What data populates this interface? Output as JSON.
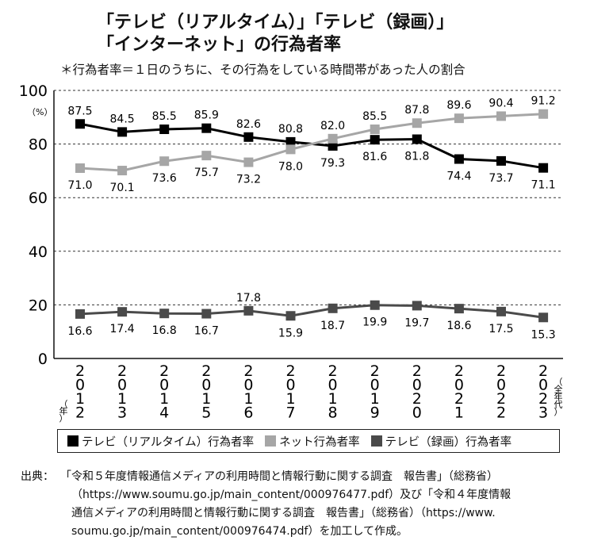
{
  "header": {
    "title_line1": "「テレビ（リアルタイム）」「テレビ（録画）」",
    "title_line2": "「インターネット」の行為者率",
    "subtitle": "＊行為者率＝１日のうちに、その行為をしている時間帯があった人の割合"
  },
  "legend": {
    "items": [
      {
        "label": "テレビ（リアルタイム）行為者率",
        "color": "#000000"
      },
      {
        "label": "ネット行為者率",
        "color": "#a6a6a6"
      },
      {
        "label": "テレビ（録画）行為者率",
        "color": "#4a4a4a"
      }
    ]
  },
  "source": {
    "label": "出典：",
    "lines": [
      "「令和５年度情報通信メディアの利用時間と情報行動に関する調査　報告書」（総務省）",
      "（https://www.soumu.go.jp/main_content/000976477.pdf）及び「令和４年度情報",
      "通信メディアの利用時間と情報行動に関する調査　報告書」（総務省）（https://www.",
      "soumu.go.jp/main_content/000976474.pdf）を加工して作成。"
    ]
  },
  "chart_data": {
    "type": "line",
    "x": [
      "2012",
      "2013",
      "2014",
      "2015",
      "2016",
      "2017",
      "2018",
      "2019",
      "2020",
      "2021",
      "2022",
      "2023"
    ],
    "x_tick_labels": [
      "2\n0\n1\n2",
      "2\n0\n1\n3",
      "2\n0\n1\n4",
      "2\n0\n1\n5",
      "2\n0\n1\n6",
      "2\n0\n1\n7",
      "2\n0\n1\n8",
      "2\n0\n1\n9",
      "2\n0\n2\n0",
      "2\n0\n2\n1",
      "2\n0\n2\n2",
      "2\n0\n2\n3"
    ],
    "x_unit_first": "（年）",
    "x_unit_last": "（全年代）",
    "ylabel": "（%）",
    "ylim": [
      0,
      100
    ],
    "yticks": [
      0,
      20,
      40,
      60,
      80,
      100
    ],
    "grid": "dashed-horizontal",
    "legend_position": "bottom",
    "series": [
      {
        "name": "テレビ（リアルタイム）行為者率",
        "color": "#000000",
        "values": [
          87.5,
          84.5,
          85.5,
          85.9,
          82.6,
          80.8,
          79.3,
          81.6,
          81.8,
          74.4,
          73.7,
          71.1
        ],
        "labels": [
          "87.5",
          "84.5",
          "85.5",
          "85.9",
          "82.6",
          "80.8",
          "79.3",
          "81.6",
          "81.8",
          "74.4",
          "73.7",
          "71.1"
        ]
      },
      {
        "name": "ネット行為者率",
        "color": "#a6a6a6",
        "values": [
          71.0,
          70.1,
          73.6,
          75.7,
          73.2,
          78.0,
          82.0,
          85.5,
          87.8,
          89.6,
          90.4,
          91.2
        ],
        "labels": [
          "71.0",
          "70.1",
          "73.6",
          "75.7",
          "73.2",
          "78.0",
          "82.0",
          "85.5",
          "87.8",
          "89.6",
          "90.4",
          "91.2"
        ]
      },
      {
        "name": "テレビ（録画）行為者率",
        "color": "#4a4a4a",
        "values": [
          16.6,
          17.4,
          16.8,
          16.7,
          17.8,
          15.9,
          18.7,
          19.9,
          19.7,
          18.6,
          17.5,
          15.3
        ],
        "labels": [
          "16.6",
          "17.4",
          "16.8",
          "16.7",
          "17.8",
          "15.9",
          "18.7",
          "19.9",
          "19.7",
          "18.6",
          "17.5",
          "15.3"
        ]
      }
    ]
  }
}
